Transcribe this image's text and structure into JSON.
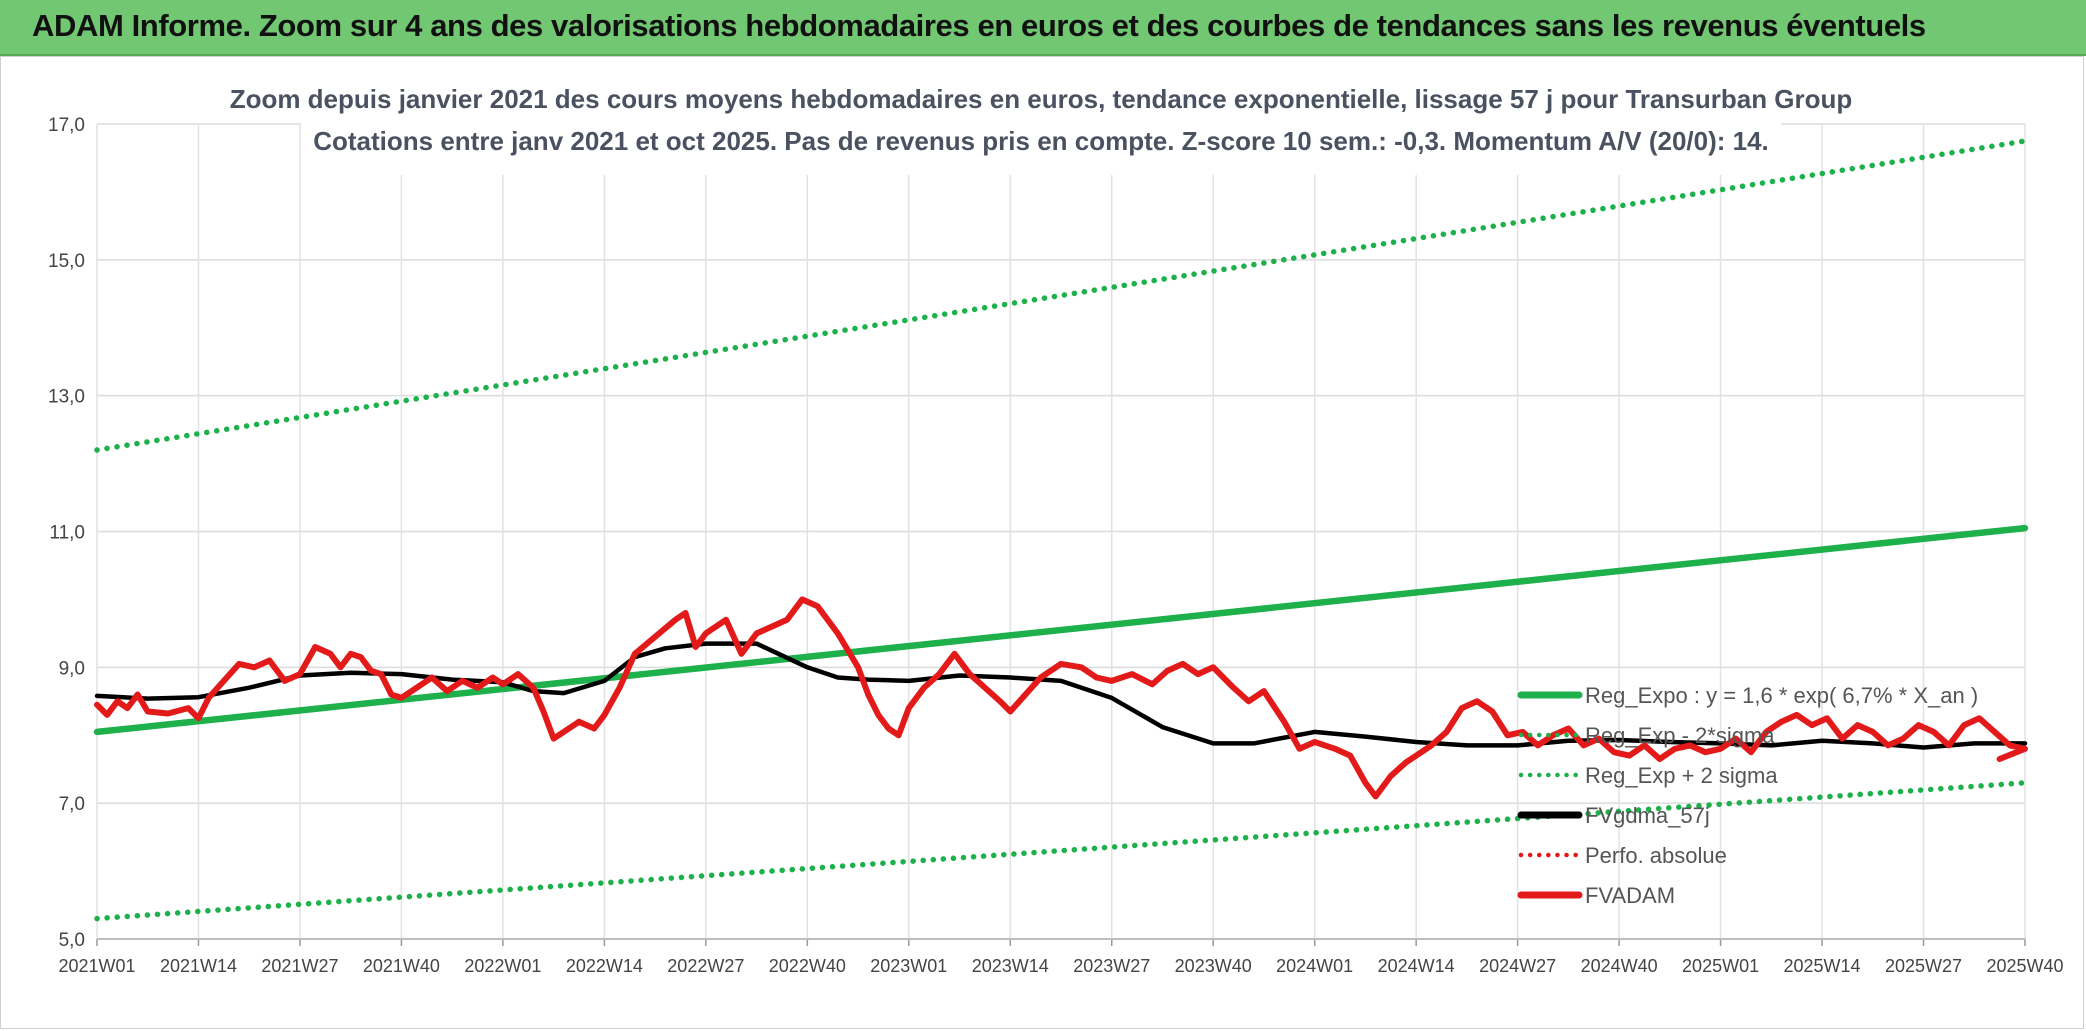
{
  "banner": {
    "title": "ADAM Informe. Zoom sur 4 ans des valorisations hebdomadaires en euros et des courbes de tendances sans les revenus éventuels"
  },
  "chart_data": {
    "type": "line",
    "title_line1": "Zoom depuis janvier 2021 des cours moyens hebdomadaires en euros, tendance exponentielle, lissage 57 j pour Transurban Group",
    "title_line2": "Cotations entre janv 2021 et oct 2025. Pas de revenus pris en compte. Z-score 10 sem.: -0,3. Momentum A/V (20/0): 14.",
    "ylim": [
      5.0,
      17.0
    ],
    "y_ticks": [
      "5,0",
      "7,0",
      "9,0",
      "11,0",
      "13,0",
      "15,0",
      "17,0"
    ],
    "x_ticks": [
      "2021W01",
      "2021W14",
      "2021W27",
      "2021W40",
      "2022W01",
      "2022W14",
      "2022W27",
      "2022W40",
      "2023W01",
      "2023W14",
      "2023W27",
      "2023W40",
      "2024W01",
      "2024W14",
      "2024W27",
      "2024W40",
      "2025W01",
      "2025W14",
      "2025W27",
      "2025W40"
    ],
    "legend": [
      {
        "label": "Reg_Expo : y = 1,6 * exp( 6,7% *  X_an )",
        "color": "#1db04b",
        "style": "solid"
      },
      {
        "label": "Reg_Exp - 2*sigma",
        "color": "#1db04b",
        "style": "dotted"
      },
      {
        "label": "Reg_Exp + 2 sigma",
        "color": "#1db04b",
        "style": "dotted"
      },
      {
        "label": "FVgdma_57j",
        "color": "#000000",
        "style": "solid"
      },
      {
        "label": "Perfo. absolue",
        "color": "#e31a1a",
        "style": "dotted"
      },
      {
        "label": "FVADAM",
        "color": "#e31a1a",
        "style": "solid"
      }
    ],
    "series": [
      {
        "name": "Reg_Expo",
        "points": [
          [
            0,
            8.05
          ],
          [
            19,
            11.05
          ]
        ]
      },
      {
        "name": "Reg_Exp + 2 sigma",
        "points": [
          [
            0,
            12.2
          ],
          [
            19,
            16.75
          ]
        ]
      },
      {
        "name": "Reg_Exp - 2*sigma",
        "points": [
          [
            0,
            5.3
          ],
          [
            19,
            7.3
          ]
        ]
      },
      {
        "name": "FVgdma_57j",
        "points": [
          [
            0,
            8.58
          ],
          [
            0.5,
            8.54
          ],
          [
            1,
            8.56
          ],
          [
            1.5,
            8.7
          ],
          [
            2,
            8.88
          ],
          [
            2.5,
            8.92
          ],
          [
            3,
            8.9
          ],
          [
            3.5,
            8.82
          ],
          [
            4,
            8.78
          ],
          [
            4.3,
            8.65
          ],
          [
            4.6,
            8.62
          ],
          [
            5,
            8.8
          ],
          [
            5.3,
            9.15
          ],
          [
            5.6,
            9.28
          ],
          [
            6,
            9.35
          ],
          [
            6.5,
            9.35
          ],
          [
            7,
            9.0
          ],
          [
            7.3,
            8.85
          ],
          [
            7.6,
            8.82
          ],
          [
            8,
            8.8
          ],
          [
            8.5,
            8.88
          ],
          [
            9,
            8.85
          ],
          [
            9.5,
            8.8
          ],
          [
            10,
            8.55
          ],
          [
            10.5,
            8.12
          ],
          [
            11,
            7.88
          ],
          [
            11.4,
            7.88
          ],
          [
            12,
            8.05
          ],
          [
            12.5,
            7.98
          ],
          [
            13,
            7.9
          ],
          [
            13.5,
            7.85
          ],
          [
            14,
            7.85
          ],
          [
            14.5,
            7.92
          ],
          [
            15,
            7.93
          ],
          [
            15.5,
            7.9
          ],
          [
            16,
            7.88
          ],
          [
            16.5,
            7.85
          ],
          [
            17,
            7.92
          ],
          [
            17.5,
            7.88
          ],
          [
            18,
            7.82
          ],
          [
            18.5,
            7.88
          ],
          [
            19,
            7.88
          ]
        ]
      },
      {
        "name": "FVADAM",
        "points": [
          [
            0,
            8.45
          ],
          [
            0.1,
            8.3
          ],
          [
            0.2,
            8.5
          ],
          [
            0.3,
            8.4
          ],
          [
            0.4,
            8.6
          ],
          [
            0.5,
            8.35
          ],
          [
            0.7,
            8.32
          ],
          [
            0.9,
            8.4
          ],
          [
            1,
            8.25
          ],
          [
            1.1,
            8.55
          ],
          [
            1.25,
            8.8
          ],
          [
            1.4,
            9.05
          ],
          [
            1.55,
            9.0
          ],
          [
            1.7,
            9.1
          ],
          [
            1.85,
            8.8
          ],
          [
            2,
            8.9
          ],
          [
            2.15,
            9.3
          ],
          [
            2.3,
            9.2
          ],
          [
            2.4,
            9.0
          ],
          [
            2.5,
            9.2
          ],
          [
            2.6,
            9.15
          ],
          [
            2.7,
            8.95
          ],
          [
            2.8,
            8.9
          ],
          [
            2.9,
            8.6
          ],
          [
            3,
            8.55
          ],
          [
            3.15,
            8.7
          ],
          [
            3.3,
            8.85
          ],
          [
            3.45,
            8.65
          ],
          [
            3.6,
            8.8
          ],
          [
            3.75,
            8.7
          ],
          [
            3.9,
            8.85
          ],
          [
            4,
            8.75
          ],
          [
            4.15,
            8.9
          ],
          [
            4.3,
            8.7
          ],
          [
            4.4,
            8.35
          ],
          [
            4.5,
            7.95
          ],
          [
            4.6,
            8.05
          ],
          [
            4.75,
            8.2
          ],
          [
            4.9,
            8.1
          ],
          [
            5,
            8.3
          ],
          [
            5.15,
            8.7
          ],
          [
            5.3,
            9.2
          ],
          [
            5.5,
            9.45
          ],
          [
            5.7,
            9.7
          ],
          [
            5.8,
            9.8
          ],
          [
            5.9,
            9.3
          ],
          [
            6,
            9.5
          ],
          [
            6.2,
            9.7
          ],
          [
            6.35,
            9.2
          ],
          [
            6.5,
            9.5
          ],
          [
            6.65,
            9.6
          ],
          [
            6.8,
            9.7
          ],
          [
            6.95,
            10.0
          ],
          [
            7.1,
            9.9
          ],
          [
            7.3,
            9.5
          ],
          [
            7.5,
            9.0
          ],
          [
            7.6,
            8.6
          ],
          [
            7.7,
            8.3
          ],
          [
            7.8,
            8.1
          ],
          [
            7.9,
            8.0
          ],
          [
            8,
            8.4
          ],
          [
            8.15,
            8.7
          ],
          [
            8.3,
            8.9
          ],
          [
            8.45,
            9.2
          ],
          [
            8.6,
            8.9
          ],
          [
            8.75,
            8.7
          ],
          [
            8.9,
            8.5
          ],
          [
            9,
            8.35
          ],
          [
            9.15,
            8.6
          ],
          [
            9.3,
            8.85
          ],
          [
            9.5,
            9.05
          ],
          [
            9.7,
            9.0
          ],
          [
            9.85,
            8.85
          ],
          [
            10,
            8.8
          ],
          [
            10.2,
            8.9
          ],
          [
            10.4,
            8.75
          ],
          [
            10.55,
            8.95
          ],
          [
            10.7,
            9.05
          ],
          [
            10.85,
            8.9
          ],
          [
            11,
            9.0
          ],
          [
            11.2,
            8.7
          ],
          [
            11.35,
            8.5
          ],
          [
            11.5,
            8.65
          ],
          [
            11.7,
            8.2
          ],
          [
            11.85,
            7.8
          ],
          [
            12,
            7.9
          ],
          [
            12.2,
            7.8
          ],
          [
            12.35,
            7.7
          ],
          [
            12.5,
            7.3
          ],
          [
            12.6,
            7.1
          ],
          [
            12.75,
            7.4
          ],
          [
            12.9,
            7.6
          ],
          [
            13,
            7.7
          ],
          [
            13.15,
            7.85
          ],
          [
            13.3,
            8.05
          ],
          [
            13.45,
            8.4
          ],
          [
            13.6,
            8.5
          ],
          [
            13.75,
            8.35
          ],
          [
            13.9,
            8.0
          ],
          [
            14.05,
            8.05
          ],
          [
            14.2,
            7.85
          ],
          [
            14.35,
            8.0
          ],
          [
            14.5,
            8.1
          ],
          [
            14.65,
            7.85
          ],
          [
            14.8,
            7.95
          ],
          [
            14.95,
            7.75
          ],
          [
            15.1,
            7.7
          ],
          [
            15.25,
            7.85
          ],
          [
            15.4,
            7.65
          ],
          [
            15.55,
            7.8
          ],
          [
            15.7,
            7.85
          ],
          [
            15.85,
            7.75
          ],
          [
            16,
            7.8
          ],
          [
            16.15,
            7.95
          ],
          [
            16.3,
            7.75
          ],
          [
            16.45,
            8.05
          ],
          [
            16.6,
            8.2
          ],
          [
            16.75,
            8.3
          ],
          [
            16.9,
            8.15
          ],
          [
            17.05,
            8.25
          ],
          [
            17.2,
            7.95
          ],
          [
            17.35,
            8.15
          ],
          [
            17.5,
            8.05
          ],
          [
            17.65,
            7.85
          ],
          [
            17.8,
            7.95
          ],
          [
            17.95,
            8.15
          ],
          [
            18.1,
            8.05
          ],
          [
            18.25,
            7.85
          ],
          [
            18.4,
            8.15
          ],
          [
            18.55,
            8.25
          ],
          [
            18.7,
            8.05
          ],
          [
            18.85,
            7.85
          ],
          [
            19,
            7.8
          ],
          [
            18.75,
            7.65
          ]
        ]
      }
    ]
  }
}
